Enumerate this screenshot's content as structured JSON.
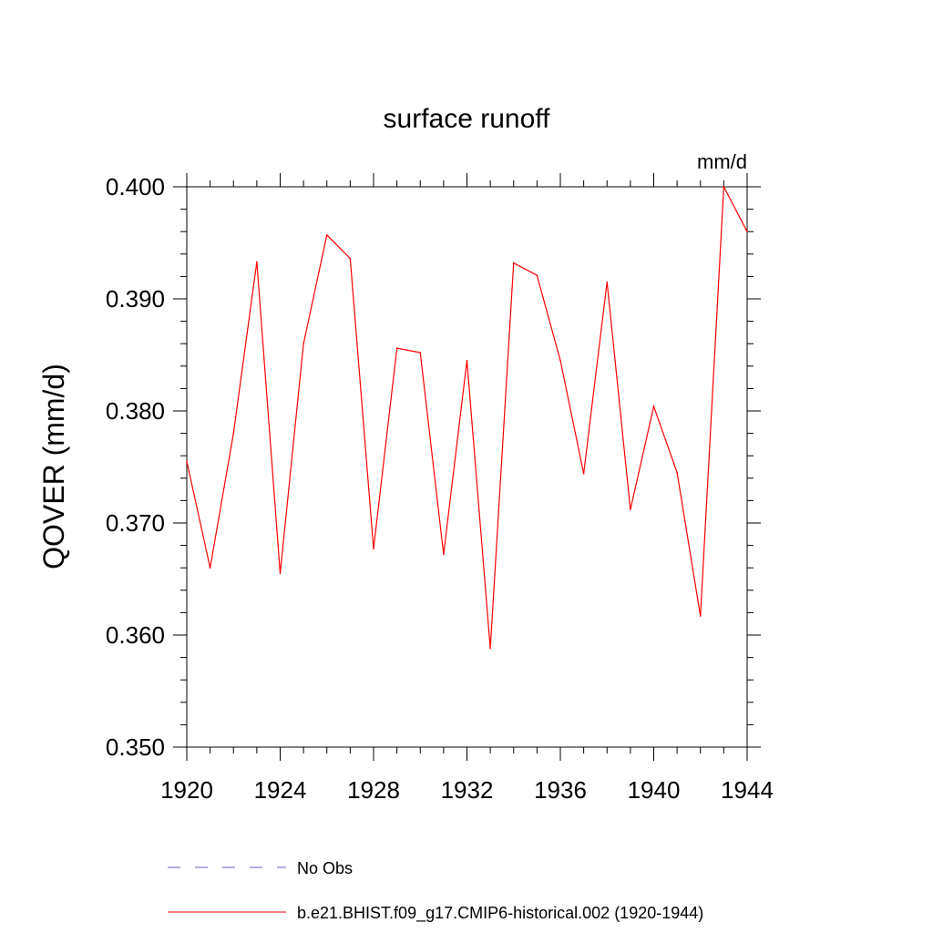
{
  "chart_data": {
    "type": "line",
    "title": "surface runoff",
    "units_label": "mm/d",
    "ylabel": "QOVER  (mm/d)",
    "xlabel": "",
    "xlim": [
      1920,
      1944
    ],
    "ylim": [
      0.35,
      0.4
    ],
    "x_ticks": [
      1920,
      1924,
      1928,
      1932,
      1936,
      1940,
      1944
    ],
    "y_ticks": [
      "0.350",
      "0.360",
      "0.370",
      "0.380",
      "0.390",
      "0.400"
    ],
    "grid": false,
    "x": [
      1920,
      1921,
      1922,
      1923,
      1924,
      1925,
      1926,
      1927,
      1928,
      1929,
      1930,
      1931,
      1932,
      1933,
      1934,
      1935,
      1936,
      1937,
      1938,
      1939,
      1940,
      1941,
      1942,
      1943,
      1944
    ],
    "series": [
      {
        "name": "b.e21.BHIST.f09_g17.CMIP6-historical.002 (1920-1944)",
        "color": "#ff0000",
        "dash": "solid",
        "values": [
          0.3755,
          0.366,
          0.378,
          0.3933,
          0.3655,
          0.386,
          0.3957,
          0.3936,
          0.3677,
          0.3856,
          0.3852,
          0.3672,
          0.3845,
          0.3588,
          0.3932,
          0.3921,
          0.3845,
          0.3744,
          0.3915,
          0.3712,
          0.3804,
          0.3745,
          0.3617,
          0.4,
          0.396
        ]
      }
    ],
    "legend": [
      {
        "label": "No Obs",
        "color": "#6060c0",
        "dash": "dashed"
      },
      {
        "label": "b.e21.BHIST.f09_g17.CMIP6-historical.002 (1920-1944)",
        "color": "#ff0000",
        "dash": "solid"
      }
    ],
    "legend_placement": "bottom"
  }
}
